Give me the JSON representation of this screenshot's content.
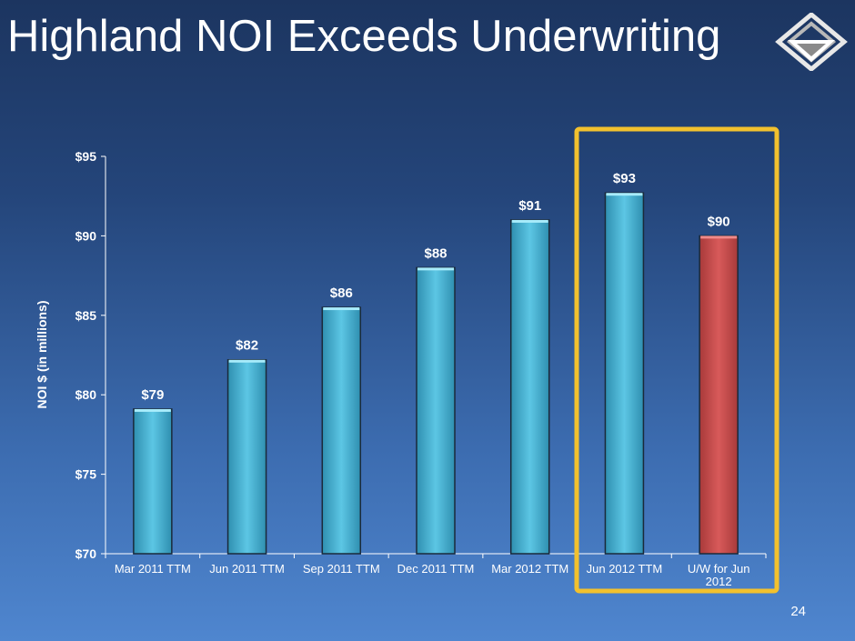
{
  "title": "Highland NOI Exceeds Underwriting",
  "page_number": "24",
  "logo_icon": "highland-diamond-logo-icon",
  "colors": {
    "bar_fill": "#4fb7d6",
    "highlight_bar_fill": "#d05050",
    "highlight_box": "#f2c12e",
    "text": "#ffffff"
  },
  "chart_data": {
    "type": "bar",
    "ylabel": "NOI $ (in millions)",
    "xlabel": "",
    "ylim": [
      70,
      95
    ],
    "yticks": [
      70,
      75,
      80,
      85,
      90,
      95
    ],
    "ytick_labels": [
      "$70",
      "$75",
      "$80",
      "$85",
      "$90",
      "$95"
    ],
    "categories": [
      "Mar 2011 TTM",
      "Jun 2011 TTM",
      "Sep 2011 TTM",
      "Dec 2011 TTM",
      "Mar 2012 TTM",
      "Jun 2012 TTM",
      "U/W for Jun 2012"
    ],
    "values": [
      79.1,
      82.2,
      85.5,
      88.0,
      91.0,
      92.7,
      90.0
    ],
    "data_labels": [
      "$79",
      "$82",
      "$86",
      "$88",
      "$91",
      "$93",
      "$90"
    ],
    "highlighted_categories": [
      "Jun 2012 TTM",
      "U/W for Jun 2012"
    ],
    "red_bar_category": "U/W for Jun 2012",
    "grid": false,
    "legend": "none"
  }
}
